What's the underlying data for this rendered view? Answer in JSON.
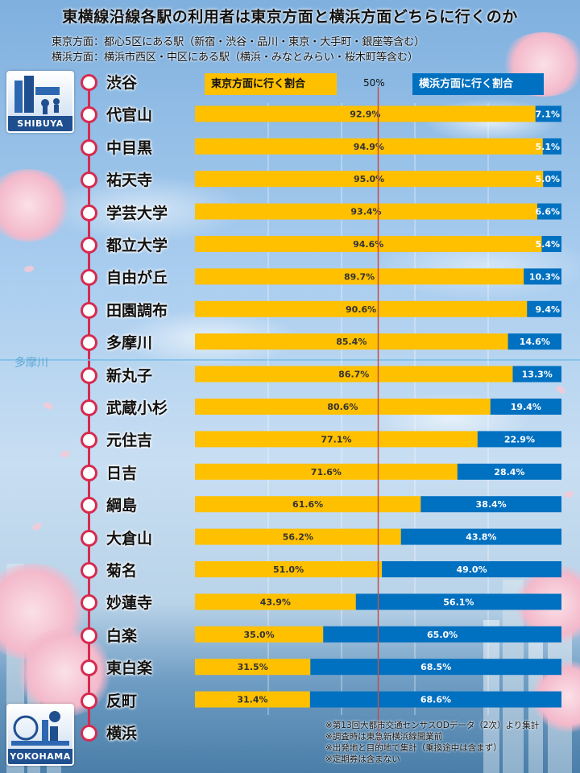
{
  "title": "東横線沿線各駅の利用者は東京方面と横浜方面どちらに行くのか",
  "subtitles": [
    "東京方面：都心5区にある駅（新宿・渋谷・品川・東京・大手町・銀座等含む）",
    "横浜方面：横浜市西区・中区にある駅（横浜・みなとみらい・桜木町等含む）"
  ],
  "badges": {
    "top": "SHIBUYA",
    "bottom": "YOKOHAMA"
  },
  "river_label": "多摩川",
  "legend": {
    "tokyo": "東京方面に行く割合",
    "yokohama": "横浜方面に行く割合",
    "midpoint": "50%"
  },
  "colors": {
    "tokyo": "#ffc000",
    "yokohama": "#0070c0",
    "line": "#d62b4f",
    "midline": "#c0504d"
  },
  "stations": [
    "渋谷",
    "代官山",
    "中目黒",
    "祐天寺",
    "学芸大学",
    "都立大学",
    "自由が丘",
    "田園調布",
    "多摩川",
    "新丸子",
    "武蔵小杉",
    "元住吉",
    "日吉",
    "綱島",
    "大倉山",
    "菊名",
    "妙蓮寺",
    "白楽",
    "東白楽",
    "反町",
    "横浜"
  ],
  "chart_data": {
    "type": "bar",
    "stacked": true,
    "orientation": "horizontal",
    "categories": [
      "代官山",
      "中目黒",
      "祐天寺",
      "学芸大学",
      "都立大学",
      "自由が丘",
      "田園調布",
      "多摩川",
      "新丸子",
      "武蔵小杉",
      "元住吉",
      "日吉",
      "綱島",
      "大倉山",
      "菊名",
      "妙蓮寺",
      "白楽",
      "東白楽",
      "反町"
    ],
    "series": [
      {
        "name": "東京方面に行く割合",
        "values": [
          92.9,
          94.9,
          95.0,
          93.4,
          94.6,
          89.7,
          90.6,
          85.4,
          86.7,
          80.6,
          77.1,
          71.6,
          61.6,
          56.2,
          51.0,
          43.9,
          35.0,
          31.5,
          31.4
        ]
      },
      {
        "name": "横浜方面に行く割合",
        "values": [
          7.1,
          5.1,
          5.0,
          6.6,
          5.4,
          10.3,
          9.4,
          14.6,
          13.3,
          19.4,
          22.9,
          28.4,
          38.4,
          43.8,
          49.0,
          56.1,
          65.0,
          68.5,
          68.6
        ]
      }
    ],
    "labels": {
      "tokyo": [
        "92.9%",
        "94.9%",
        "95.0%",
        "93.4%",
        "94.6%",
        "89.7%",
        "90.6%",
        "85.4%",
        "86.7%",
        "80.6%",
        "77.1%",
        "71.6%",
        "61.6%",
        "56.2%",
        "51.0%",
        "43.9%",
        "35.0%",
        "31.5%",
        "31.4%"
      ],
      "yokohama": [
        "7.1%",
        "5.1%",
        "5.0%",
        "6.6%",
        "5.4%",
        "10.3%",
        "9.4%",
        "14.6%",
        "13.3%",
        "19.4%",
        "22.9%",
        "28.4%",
        "38.4%",
        "43.8%",
        "49.0%",
        "56.1%",
        "65.0%",
        "68.5%",
        "68.6%"
      ]
    },
    "xlim": [
      0,
      100
    ],
    "reference_line": 50,
    "grid": true
  },
  "notes": [
    "※第13回大都市交通センサスODデータ（2次）より集計",
    "※調査時は東急新横浜線開業前",
    "※出発地と目的地で集計（乗換途中は含まず）",
    "※定期券は含まない"
  ]
}
